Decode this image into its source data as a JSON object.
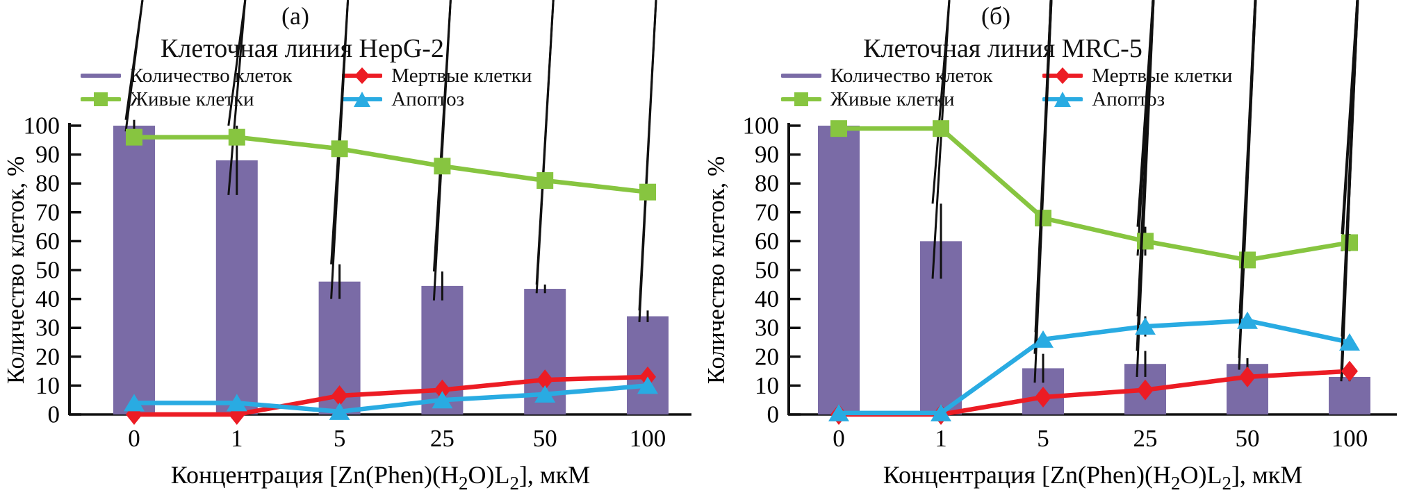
{
  "figure": {
    "description": "Two-panel bar/line chart of cell counts vs complex concentration"
  },
  "chart_data": [
    {
      "type": "bar",
      "panel_label": "(a)",
      "title": "Клеточная линия HepG-2",
      "xlabel": "Концентрация [Zn(Phen)(H₂O)L₂], мкМ",
      "xlabel_parts": [
        {
          "text": "Концентрация [Zn(Phen)(H"
        },
        {
          "text": "2",
          "sub": true
        },
        {
          "text": "O)L"
        },
        {
          "text": "2",
          "sub": true
        },
        {
          "text": "], мкМ"
        }
      ],
      "ylabel": "Количество клеток, %",
      "categories": [
        "0",
        "1",
        "5",
        "25",
        "50",
        "100"
      ],
      "ylim": [
        0,
        100
      ],
      "yticks": [
        0,
        10,
        20,
        30,
        40,
        50,
        60,
        70,
        80,
        90,
        100
      ],
      "grid": false,
      "legend_position": "top",
      "series": [
        {
          "name": "Количество клеток",
          "type": "bar",
          "marker": "none",
          "color": "#7A6BA6",
          "values": [
            100,
            88,
            46,
            44.5,
            43.5,
            34
          ],
          "errors": [
            2,
            12,
            6,
            5,
            1.5,
            2
          ]
        },
        {
          "name": "Живые клетки",
          "type": "line",
          "marker": "square",
          "color": "#87C540",
          "values": [
            96,
            96,
            92,
            86,
            81,
            77
          ],
          "errors": [
            0,
            0,
            0,
            0,
            0,
            0
          ]
        },
        {
          "name": "Мертвые клетки",
          "type": "line",
          "marker": "diamond",
          "color": "#EC1C24",
          "values": [
            0,
            0,
            6.5,
            8.5,
            12,
            13
          ],
          "errors": [
            0,
            0,
            0,
            0,
            0,
            0
          ]
        },
        {
          "name": "Апоптоз",
          "type": "line",
          "marker": "triangle",
          "color": "#29ABE2",
          "values": [
            4,
            4,
            1,
            5,
            7,
            10
          ],
          "errors": [
            0,
            0,
            0,
            0,
            0,
            0
          ]
        }
      ]
    },
    {
      "type": "bar",
      "panel_label": "(б)",
      "title": "Клеточная линия MRC-5",
      "xlabel": "Концентрация [Zn(Phen)(H₂O)L₂], мкМ",
      "xlabel_parts": [
        {
          "text": "Концентрация [Zn(Phen)(H"
        },
        {
          "text": "2",
          "sub": true
        },
        {
          "text": "O)L"
        },
        {
          "text": "2",
          "sub": true
        },
        {
          "text": "], мкМ"
        }
      ],
      "ylabel": "Количество клеток, %",
      "categories": [
        "0",
        "1",
        "5",
        "25",
        "50",
        "100"
      ],
      "ylim": [
        0,
        100
      ],
      "yticks": [
        0,
        10,
        20,
        30,
        40,
        50,
        60,
        70,
        80,
        90,
        100
      ],
      "grid": false,
      "legend_position": "top",
      "series": [
        {
          "name": "Количество клеток",
          "type": "bar",
          "marker": "none",
          "color": "#7A6BA6",
          "values": [
            100,
            60,
            16,
            17.5,
            17.5,
            13
          ],
          "errors": [
            0,
            13,
            5,
            4.5,
            2,
            1.5
          ]
        },
        {
          "name": "Живые клетки",
          "type": "line",
          "marker": "square",
          "color": "#87C540",
          "values": [
            99,
            99,
            68,
            60,
            53.5,
            59.5
          ],
          "errors": [
            0,
            0,
            0,
            5,
            0,
            3
          ]
        },
        {
          "name": "Мертвые клетки",
          "type": "line",
          "marker": "diamond",
          "color": "#EC1C24",
          "values": [
            0,
            0,
            6,
            8.5,
            13,
            15
          ],
          "errors": [
            0,
            0,
            0,
            0,
            0,
            2.5
          ]
        },
        {
          "name": "Апоптоз",
          "type": "line",
          "marker": "triangle",
          "color": "#29ABE2",
          "values": [
            0.5,
            0.5,
            26,
            30.5,
            32.5,
            25
          ],
          "errors": [
            0,
            0,
            2.5,
            3.5,
            2.5,
            2
          ]
        }
      ]
    }
  ],
  "colors": {
    "bar_purple": "#7A6BA6",
    "live_green": "#87C540",
    "dead_red": "#EC1C24",
    "apoptosis_blue": "#29ABE2",
    "axis_black": "#111111"
  }
}
